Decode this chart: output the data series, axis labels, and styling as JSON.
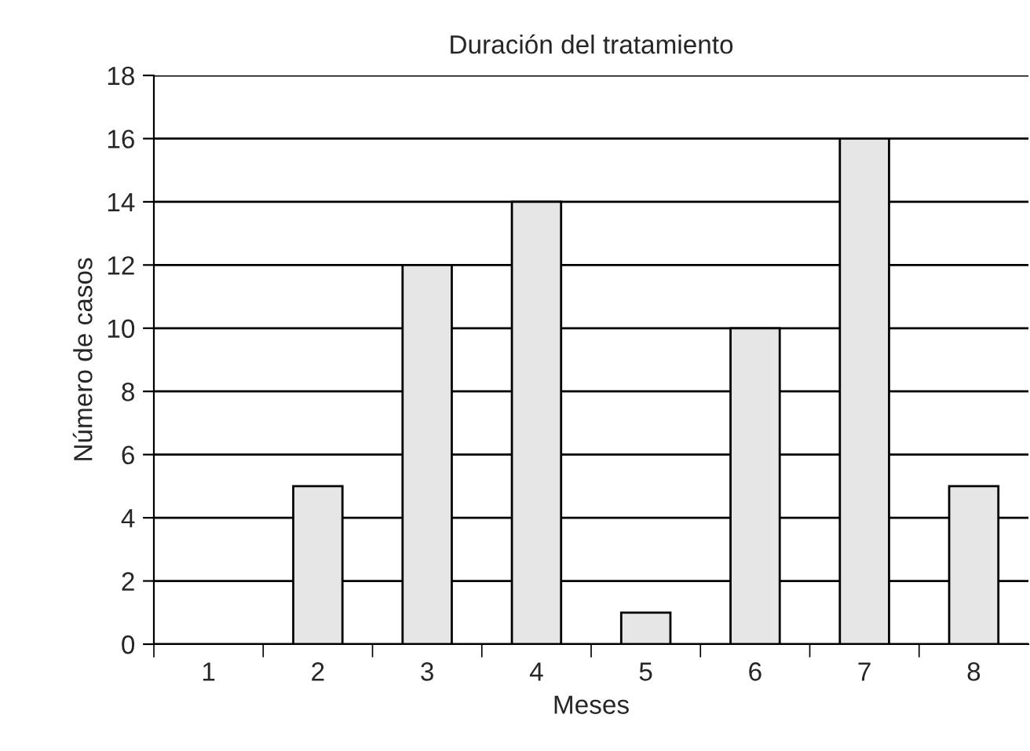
{
  "chart_data": {
    "type": "bar",
    "title": "Duración del tratamiento",
    "xlabel": "Meses",
    "ylabel": "Número de casos",
    "categories": [
      "1",
      "2",
      "3",
      "4",
      "5",
      "6",
      "7",
      "8"
    ],
    "values": [
      0,
      5,
      12,
      14,
      1,
      10,
      16,
      5
    ],
    "color": "#e6e6e6",
    "ylim": [
      0,
      18
    ],
    "yticks": [
      0,
      2,
      4,
      6,
      8,
      10,
      12,
      14,
      16,
      18
    ],
    "grid": "y",
    "legend": false
  }
}
